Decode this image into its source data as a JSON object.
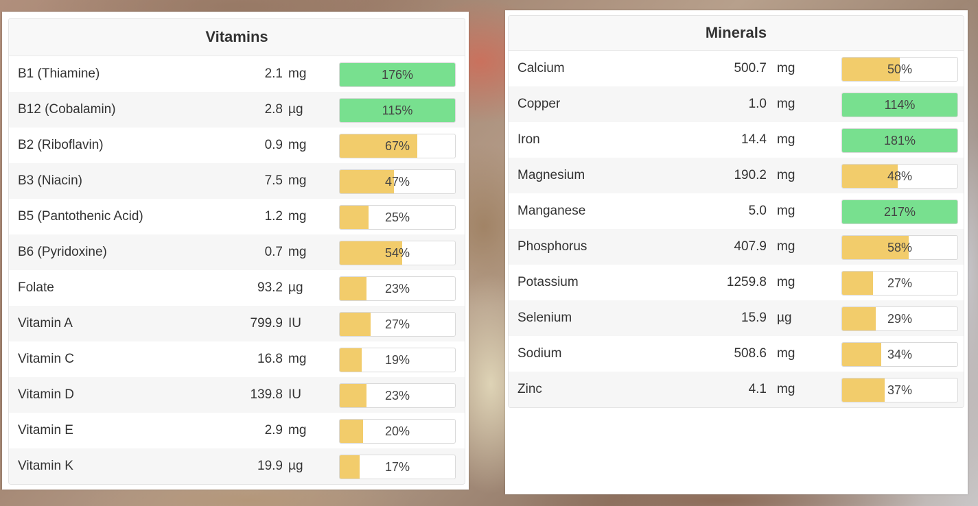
{
  "vitamins": {
    "title": "Vitamins",
    "rows": [
      {
        "name": "B1 (Thiamine)",
        "amount": "2.1",
        "unit": "mg",
        "percent_label": "176%",
        "percent": 176
      },
      {
        "name": "B12 (Cobalamin)",
        "amount": "2.8",
        "unit": "µg",
        "percent_label": "115%",
        "percent": 115
      },
      {
        "name": "B2 (Riboflavin)",
        "amount": "0.9",
        "unit": "mg",
        "percent_label": "67%",
        "percent": 67
      },
      {
        "name": "B3 (Niacin)",
        "amount": "7.5",
        "unit": "mg",
        "percent_label": "47%",
        "percent": 47
      },
      {
        "name": "B5 (Pantothenic Acid)",
        "amount": "1.2",
        "unit": "mg",
        "percent_label": "25%",
        "percent": 25
      },
      {
        "name": "B6 (Pyridoxine)",
        "amount": "0.7",
        "unit": "mg",
        "percent_label": "54%",
        "percent": 54
      },
      {
        "name": "Folate",
        "amount": "93.2",
        "unit": "µg",
        "percent_label": "23%",
        "percent": 23
      },
      {
        "name": "Vitamin A",
        "amount": "799.9",
        "unit": "IU",
        "percent_label": "27%",
        "percent": 27
      },
      {
        "name": "Vitamin C",
        "amount": "16.8",
        "unit": "mg",
        "percent_label": "19%",
        "percent": 19
      },
      {
        "name": "Vitamin D",
        "amount": "139.8",
        "unit": "IU",
        "percent_label": "23%",
        "percent": 23
      },
      {
        "name": "Vitamin E",
        "amount": "2.9",
        "unit": "mg",
        "percent_label": "20%",
        "percent": 20
      },
      {
        "name": "Vitamin K",
        "amount": "19.9",
        "unit": "µg",
        "percent_label": "17%",
        "percent": 17
      }
    ]
  },
  "minerals": {
    "title": "Minerals",
    "rows": [
      {
        "name": "Calcium",
        "amount": "500.7",
        "unit": "mg",
        "percent_label": "50%",
        "percent": 50
      },
      {
        "name": "Copper",
        "amount": "1.0",
        "unit": "mg",
        "percent_label": "114%",
        "percent": 114
      },
      {
        "name": "Iron",
        "amount": "14.4",
        "unit": "mg",
        "percent_label": "181%",
        "percent": 181
      },
      {
        "name": "Magnesium",
        "amount": "190.2",
        "unit": "mg",
        "percent_label": "48%",
        "percent": 48
      },
      {
        "name": "Manganese",
        "amount": "5.0",
        "unit": "mg",
        "percent_label": "217%",
        "percent": 217
      },
      {
        "name": "Phosphorus",
        "amount": "407.9",
        "unit": "mg",
        "percent_label": "58%",
        "percent": 58
      },
      {
        "name": "Potassium",
        "amount": "1259.8",
        "unit": "mg",
        "percent_label": "27%",
        "percent": 27
      },
      {
        "name": "Selenium",
        "amount": "15.9",
        "unit": "µg",
        "percent_label": "29%",
        "percent": 29
      },
      {
        "name": "Sodium",
        "amount": "508.6",
        "unit": "mg",
        "percent_label": "34%",
        "percent": 34
      },
      {
        "name": "Zinc",
        "amount": "4.1",
        "unit": "mg",
        "percent_label": "37%",
        "percent": 37
      }
    ]
  },
  "colors": {
    "bar_partial": "#f2cc6b",
    "bar_full": "#78e08f",
    "bar_track": "#ffffff"
  }
}
